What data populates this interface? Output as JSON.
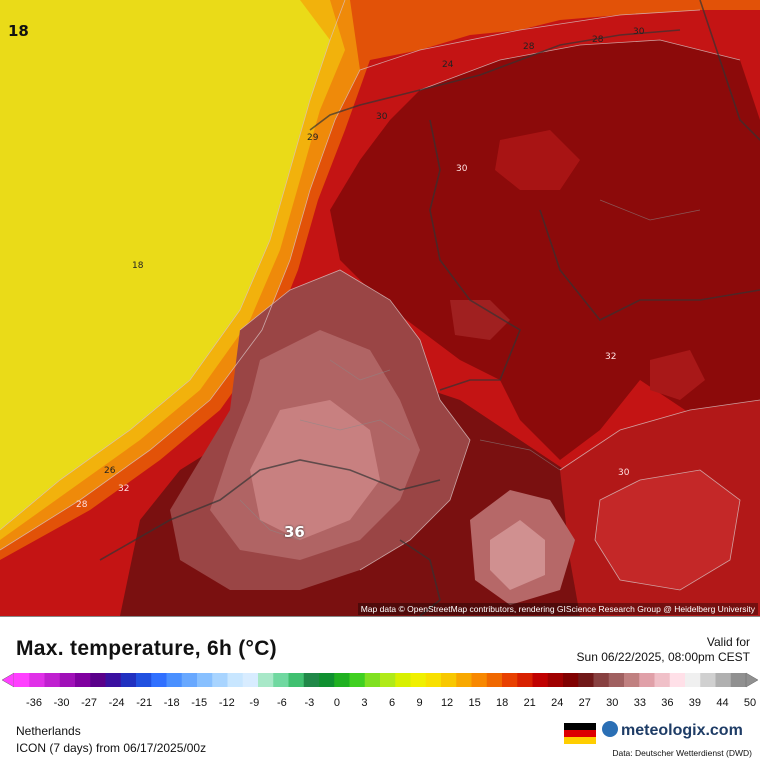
{
  "map": {
    "attribution": "Map data © OpenStreetMap contributors, rendering GIScience Research Group @ Heidelberg University",
    "contour_labels": [
      {
        "id": "label-corner-18",
        "text": "18",
        "kind": "corner"
      },
      {
        "id": "label-18",
        "text": "18",
        "kind": "small"
      },
      {
        "id": "label-24",
        "text": "24",
        "kind": "small"
      },
      {
        "id": "label-28-a",
        "text": "28",
        "kind": "small"
      },
      {
        "id": "label-28-b",
        "text": "28",
        "kind": "small"
      },
      {
        "id": "label-30-a",
        "text": "30",
        "kind": "small"
      },
      {
        "id": "label-30-b",
        "text": "30",
        "kind": "small"
      },
      {
        "id": "label-29",
        "text": "29",
        "kind": "small"
      },
      {
        "id": "label-26",
        "text": "26",
        "kind": "small"
      },
      {
        "id": "label-32-a",
        "text": "32",
        "kind": "small"
      },
      {
        "id": "label-30-c",
        "text": "30",
        "kind": "small"
      },
      {
        "id": "label-32-b",
        "text": "32",
        "kind": "small"
      },
      {
        "id": "label-28-c",
        "text": "28",
        "kind": "small"
      },
      {
        "id": "label-30-d",
        "text": "30",
        "kind": "small"
      },
      {
        "id": "label-36",
        "text": "36",
        "kind": "big"
      }
    ]
  },
  "legend": {
    "title": "Max. temperature, 6h (°C)",
    "valid_label": "Valid for",
    "valid_date": "Sun 06/22/2025, 08:00pm CEST",
    "ticks": [
      "-36",
      "-30",
      "-27",
      "-24",
      "-21",
      "-18",
      "-15",
      "-12",
      "-9",
      "-6",
      "-3",
      "0",
      "3",
      "6",
      "9",
      "12",
      "15",
      "18",
      "21",
      "24",
      "27",
      "30",
      "33",
      "36",
      "39",
      "44",
      "50"
    ],
    "scale_colors": [
      "#ff40ff",
      "#e030e8",
      "#c020d0",
      "#a010b8",
      "#8000a0",
      "#5a008a",
      "#3a10a0",
      "#2030c0",
      "#2050e0",
      "#3070ff",
      "#4a90ff",
      "#68a8ff",
      "#88c0ff",
      "#a8d4ff",
      "#c8e6ff",
      "#d8ecff",
      "#a8e8c8",
      "#70d8a0",
      "#40c070",
      "#208848",
      "#109030",
      "#20b020",
      "#40d020",
      "#80e020",
      "#b0ea18",
      "#d8f000",
      "#f0f000",
      "#f8e000",
      "#f8c800",
      "#f8a800",
      "#f88800",
      "#f06800",
      "#e84000",
      "#d82000",
      "#c00000",
      "#a00000",
      "#800000",
      "#701818",
      "#884040",
      "#a06060",
      "#c08080",
      "#e0a0a8",
      "#f0c0c8",
      "#ffe0e8",
      "#f0f0f0",
      "#d0d0d0",
      "#b0b0b0",
      "#909090"
    ],
    "region": "Netherlands",
    "model": "ICON (7 days)  from  06/17/2025/00z",
    "brand": "meteologix.com",
    "data_credit": "Data: Deutscher Wetterdienst  (DWD)"
  }
}
